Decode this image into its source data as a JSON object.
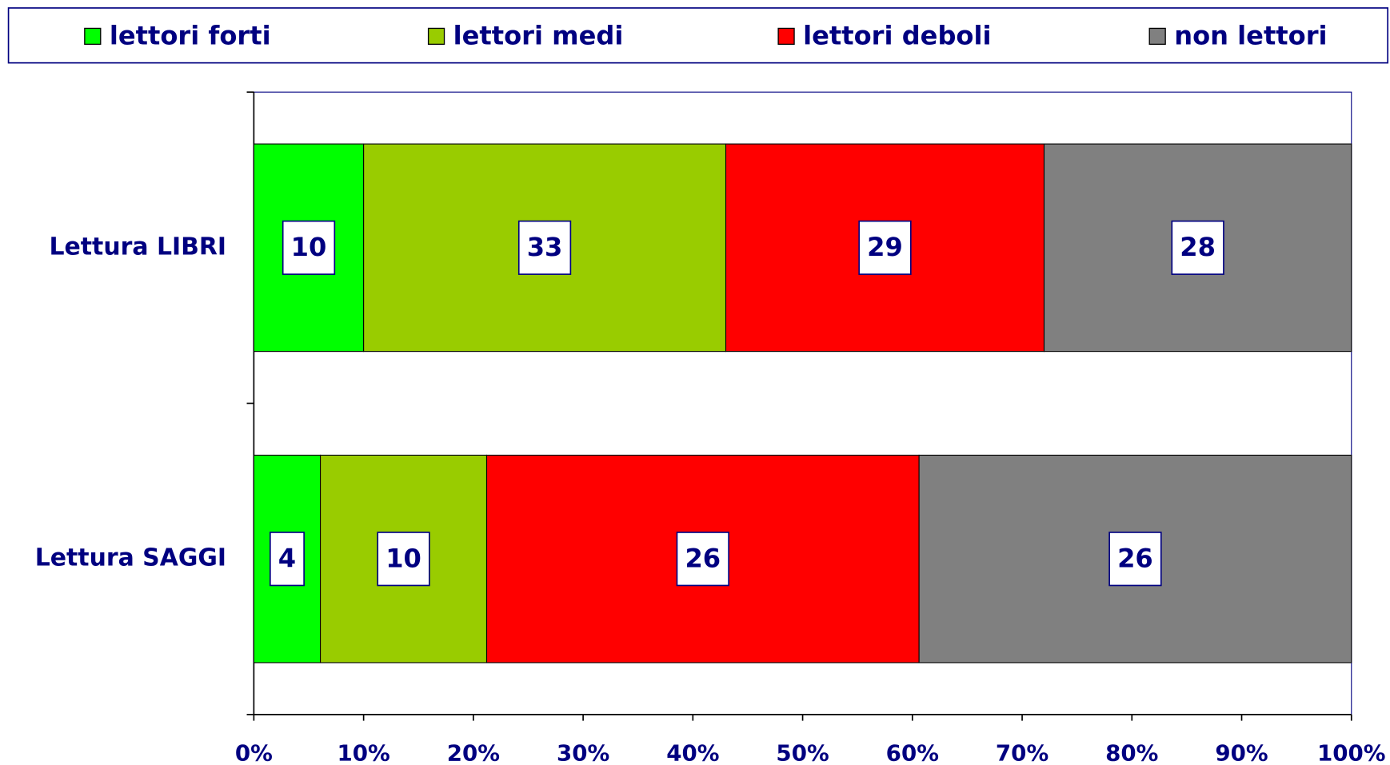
{
  "chart_data": {
    "type": "bar",
    "orientation": "horizontal",
    "stacked": "percent",
    "categories": [
      "Lettura LIBRI",
      "Lettura SAGGI"
    ],
    "series": [
      {
        "name": "lettori forti",
        "color": "#00FF00",
        "values": [
          10,
          4
        ]
      },
      {
        "name": "lettori medi",
        "color": "#99CC00",
        "values": [
          33,
          10
        ]
      },
      {
        "name": "lettori deboli",
        "color": "#FF0000",
        "values": [
          29,
          26
        ]
      },
      {
        "name": "non lettori",
        "color": "#808080",
        "values": [
          28,
          26
        ]
      }
    ],
    "xlim": [
      0,
      100
    ],
    "xticks": [
      {
        "value": 0,
        "label": "0%"
      },
      {
        "value": 10,
        "label": "10%"
      },
      {
        "value": 20,
        "label": "20%"
      },
      {
        "value": 30,
        "label": "30%"
      },
      {
        "value": 40,
        "label": "40%"
      },
      {
        "value": 50,
        "label": "50%"
      },
      {
        "value": 60,
        "label": "60%"
      },
      {
        "value": 70,
        "label": "70%"
      },
      {
        "value": 80,
        "label": "80%"
      },
      {
        "value": 90,
        "label": "90%"
      },
      {
        "value": 100,
        "label": "100%"
      }
    ],
    "legend": "top"
  }
}
